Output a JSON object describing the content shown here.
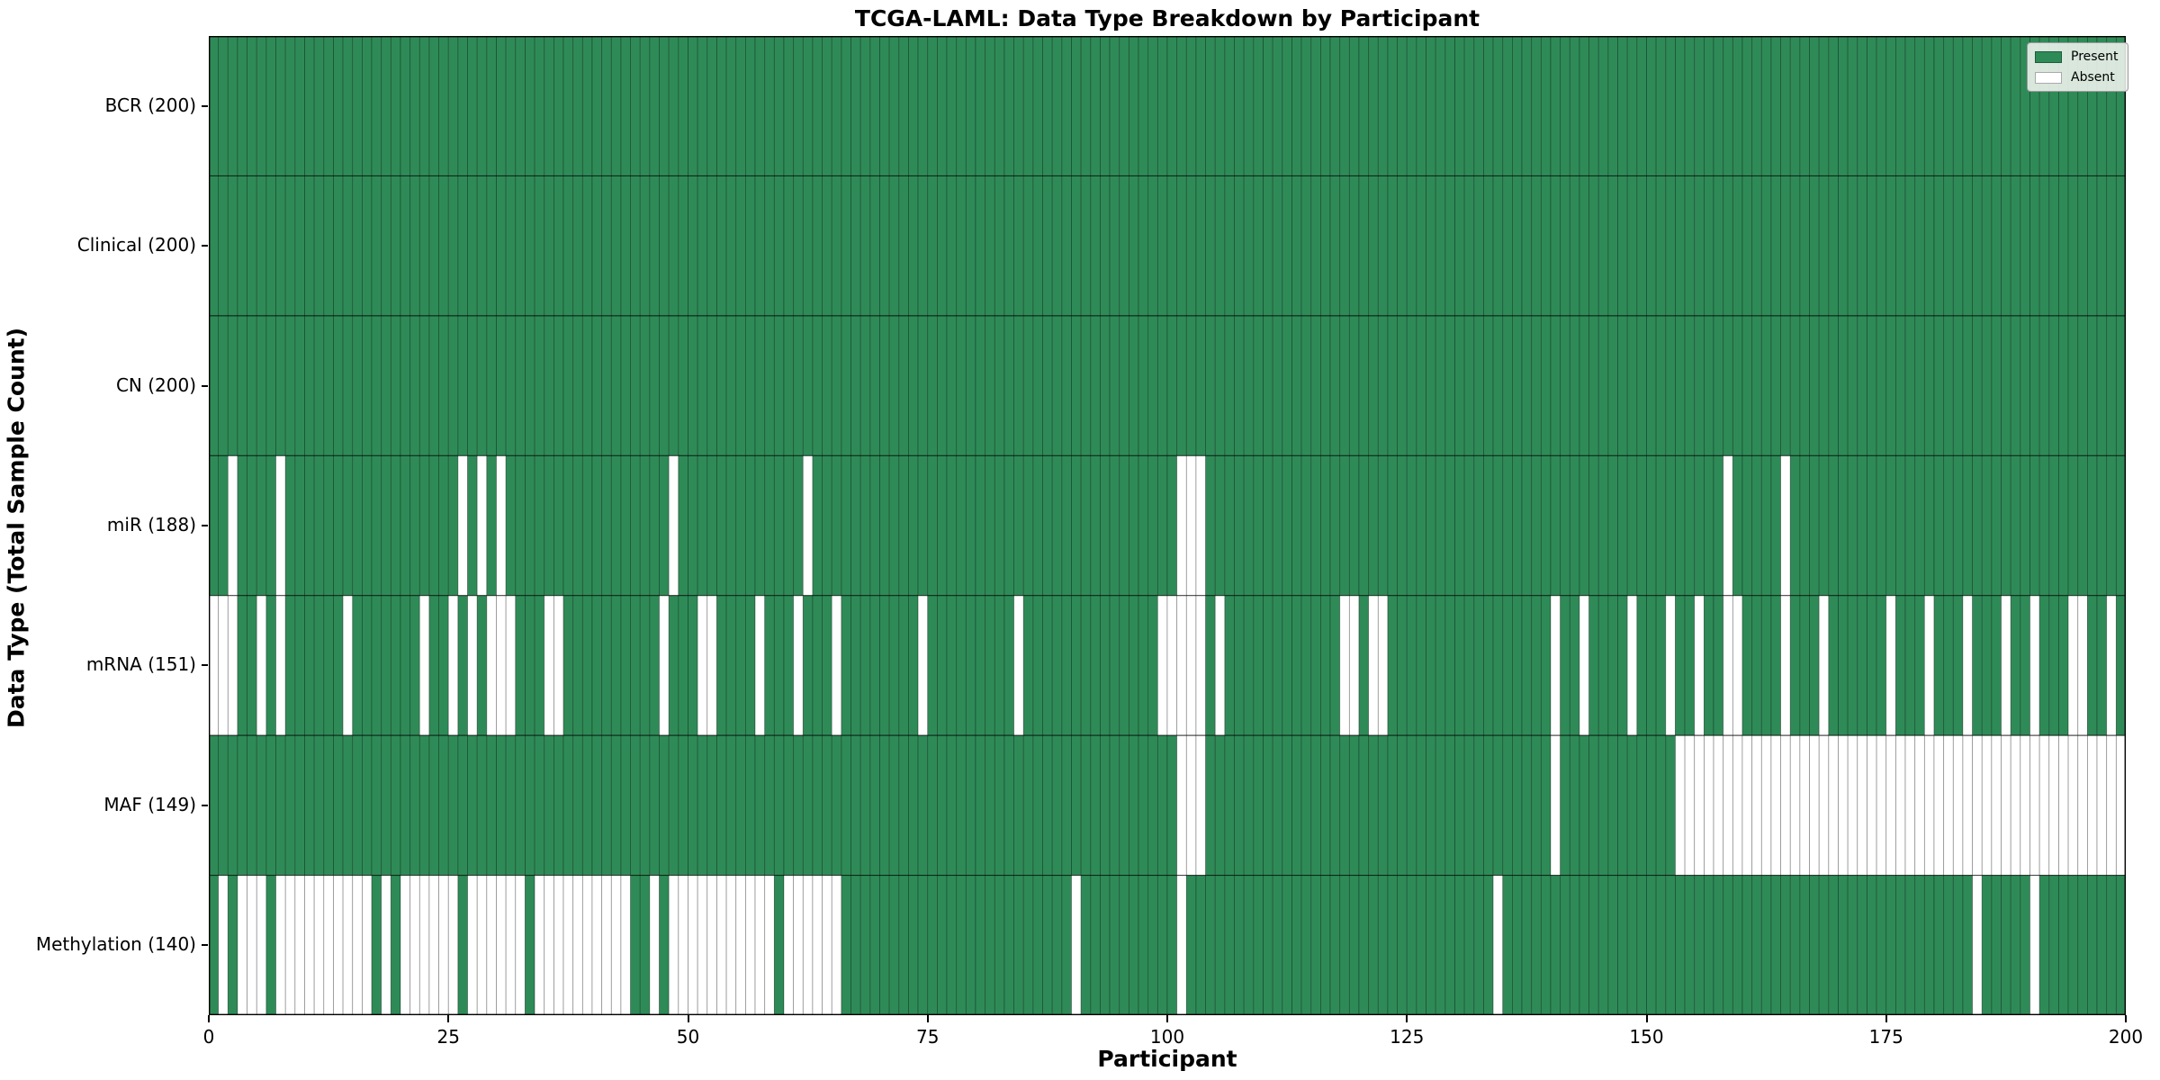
{
  "title": "TCGA-LAML: Data Type Breakdown by Participant",
  "xlabel": "Participant",
  "ylabel": "Data Type (Total Sample Count)",
  "legend": {
    "present_label": "Present",
    "absent_label": "Absent"
  },
  "colors": {
    "present": "#2e8b57",
    "absent": "#ffffff",
    "cell_edge": "rgba(0,0,0,0.35)",
    "row_divider": "rgba(0,0,0,0.55)",
    "plot_border": "#000000"
  },
  "chart_data": {
    "type": "heatmap",
    "title": "TCGA-LAML: Data Type Breakdown by Participant",
    "xlabel": "Participant",
    "ylabel": "Data Type (Total Sample Count)",
    "legend_entries": [
      "Present",
      "Absent"
    ],
    "legend_position": "upper right",
    "n_participants": 200,
    "x_range": [
      0,
      200
    ],
    "x_ticks": [
      0,
      25,
      50,
      75,
      100,
      125,
      150,
      175,
      200
    ],
    "value_encoding": {
      "present": 1,
      "absent": 0
    },
    "rows": [
      {
        "label": "BCR (200)",
        "name": "BCR",
        "present_count": 200,
        "absent_participants": []
      },
      {
        "label": "Clinical (200)",
        "name": "Clinical",
        "present_count": 200,
        "absent_participants": []
      },
      {
        "label": "CN (200)",
        "name": "CN",
        "present_count": 200,
        "absent_participants": []
      },
      {
        "label": "miR (188)",
        "name": "miR",
        "present_count": 188,
        "absent_participants": [
          2,
          7,
          26,
          28,
          30,
          48,
          62,
          101,
          102,
          103,
          158,
          164
        ]
      },
      {
        "label": "mRNA (151)",
        "name": "mRNA",
        "present_count": 151,
        "absent_participants": [
          0,
          1,
          2,
          5,
          7,
          14,
          22,
          25,
          27,
          29,
          30,
          31,
          35,
          36,
          47,
          51,
          52,
          57,
          61,
          65,
          74,
          84,
          99,
          100,
          101,
          102,
          103,
          105,
          118,
          119,
          121,
          122,
          140,
          143,
          148,
          152,
          155,
          158,
          159,
          164,
          168,
          175,
          179,
          183,
          187,
          190,
          194,
          195,
          198
        ]
      },
      {
        "label": "MAF (149)",
        "name": "MAF",
        "present_count": 149,
        "absent_participants": [
          101,
          102,
          103,
          140,
          153,
          154,
          155,
          156,
          157,
          158,
          159,
          160,
          161,
          162,
          163,
          164,
          165,
          166,
          167,
          168,
          169,
          170,
          171,
          172,
          173,
          174,
          175,
          176,
          177,
          178,
          179,
          180,
          181,
          182,
          183,
          184,
          185,
          186,
          187,
          188,
          189,
          190,
          191,
          192,
          193,
          194,
          195,
          196,
          197,
          198,
          199
        ]
      },
      {
        "label": "Methylation (140)",
        "name": "Methylation",
        "present_count": 140,
        "absent_participants": [
          1,
          3,
          4,
          5,
          7,
          8,
          9,
          10,
          11,
          12,
          13,
          14,
          15,
          16,
          18,
          20,
          21,
          22,
          23,
          24,
          25,
          27,
          28,
          29,
          30,
          31,
          32,
          34,
          35,
          36,
          37,
          38,
          39,
          40,
          41,
          42,
          43,
          46,
          48,
          49,
          50,
          51,
          52,
          53,
          54,
          55,
          56,
          57,
          58,
          60,
          61,
          62,
          63,
          64,
          65,
          90,
          101,
          134,
          184,
          190
        ]
      }
    ]
  }
}
